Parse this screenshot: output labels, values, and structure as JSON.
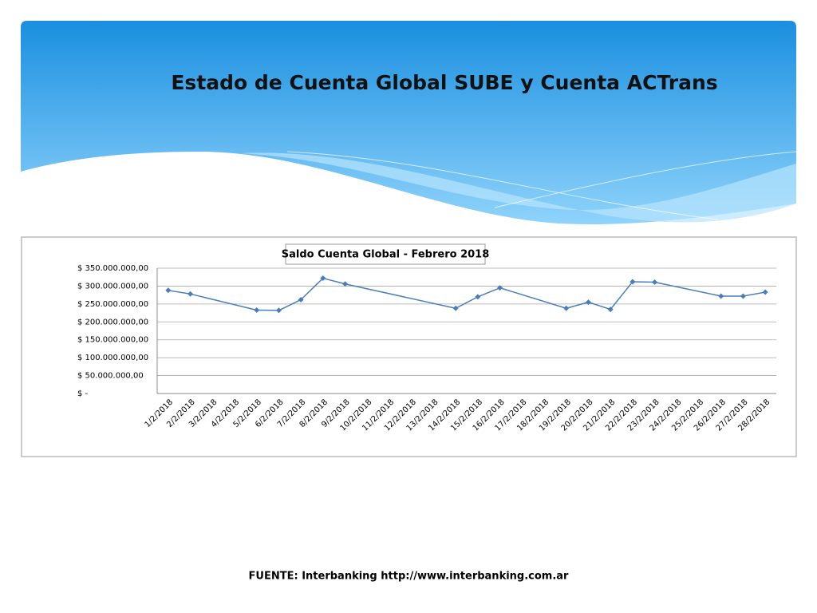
{
  "header": {
    "title": "Estado de Cuenta Global SUBE y Cuenta ACTrans"
  },
  "chart_data": {
    "type": "line",
    "title": "Saldo Cuenta Global - Febrero 2018",
    "categories": [
      "1/2/2018",
      "2/2/2018",
      "3/2/2018",
      "4/2/2018",
      "5/2/2018",
      "6/2/2018",
      "7/2/2018",
      "8/2/2018",
      "9/2/2018",
      "10/2/2018",
      "11/2/2018",
      "12/2/2018",
      "13/2/2018",
      "14/2/2018",
      "15/2/2018",
      "16/2/2018",
      "17/2/2018",
      "18/2/2018",
      "19/2/2018",
      "20/2/2018",
      "21/2/2018",
      "22/2/2018",
      "23/2/2018",
      "24/2/2018",
      "25/2/2018",
      "26/2/2018",
      "27/2/2018",
      "28/2/2018"
    ],
    "series": [
      {
        "name": "Saldo Cuenta Global",
        "color": "#4a7ebb",
        "values": [
          288000000,
          278000000,
          null,
          null,
          233000000,
          232000000,
          262000000,
          322000000,
          306000000,
          null,
          null,
          null,
          null,
          238000000,
          270000000,
          295000000,
          null,
          null,
          238000000,
          255000000,
          235000000,
          312000000,
          311000000,
          null,
          null,
          272000000,
          272000000,
          283000000
        ]
      }
    ],
    "ylim": [
      0,
      350000000
    ],
    "yticks": [
      {
        "value": 0,
        "label": "$ -"
      },
      {
        "value": 50000000,
        "label": "$ 50.000.000,00"
      },
      {
        "value": 100000000,
        "label": "$ 100.000.000,00"
      },
      {
        "value": 150000000,
        "label": "$ 150.000.000,00"
      },
      {
        "value": 200000000,
        "label": "$ 200.000.000,00"
      },
      {
        "value": 250000000,
        "label": "$ 250.000.000,00"
      },
      {
        "value": 300000000,
        "label": "$ 300.000.000,00"
      },
      {
        "value": 350000000,
        "label": "$ 350.000.000,00"
      }
    ],
    "grid": true
  },
  "footer": {
    "source": "FUENTE: Interbanking http://www.interbanking.com.ar"
  }
}
